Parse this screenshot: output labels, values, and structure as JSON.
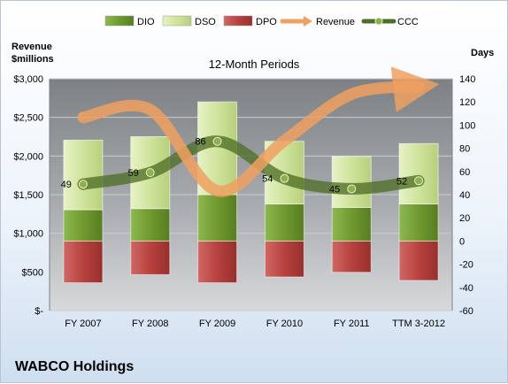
{
  "chart_data": {
    "type": "bar",
    "title": "12-Month Periods",
    "company": "WABCO Holdings",
    "categories": [
      "FY 2007",
      "FY 2008",
      "FY 2009",
      "FY 2010",
      "FY 2011",
      "TTM 3-2012"
    ],
    "left_axis": {
      "label_line1": "Revenue",
      "label_line2": "$millions",
      "ylim": [
        0,
        3000
      ],
      "ticks": [
        {
          "value": 0,
          "label": "$-"
        },
        {
          "value": 500,
          "label": "$500"
        },
        {
          "value": 1000,
          "label": "$1,000"
        },
        {
          "value": 1500,
          "label": "$1,500"
        },
        {
          "value": 2000,
          "label": "$2,000"
        },
        {
          "value": 2500,
          "label": "$2,500"
        },
        {
          "value": 3000,
          "label": "$3,000"
        }
      ]
    },
    "right_axis": {
      "label": "Days",
      "ylim": [
        -60,
        140
      ],
      "ticks": [
        -60,
        -40,
        -20,
        0,
        20,
        40,
        60,
        80,
        100,
        120,
        140
      ]
    },
    "grid": true,
    "legend_position": "top",
    "series": [
      {
        "name": "DIO",
        "type": "stacked-bar",
        "axis": "right",
        "color": "#7aa83a",
        "values": [
          27,
          28,
          40,
          32,
          29,
          32
        ]
      },
      {
        "name": "DSO",
        "type": "stacked-bar",
        "axis": "right",
        "color": "#d4e8a8",
        "values": [
          60,
          62,
          80,
          54,
          44,
          52
        ]
      },
      {
        "name": "DPO",
        "type": "stacked-bar",
        "axis": "right",
        "color": "#c0504d",
        "values": [
          -36,
          -29,
          -36,
          -31,
          -27,
          -34
        ]
      },
      {
        "name": "Revenue",
        "type": "line",
        "axis": "left",
        "color": "#f0a060",
        "values": [
          2500,
          2600,
          1550,
          2200,
          2800,
          2900
        ]
      },
      {
        "name": "CCC",
        "type": "line",
        "axis": "right",
        "color": "#5b7a2e",
        "values": [
          49,
          59,
          86,
          54,
          45,
          52
        ],
        "labels": [
          "49",
          "59",
          "86",
          "54",
          "45",
          "52"
        ]
      }
    ]
  }
}
